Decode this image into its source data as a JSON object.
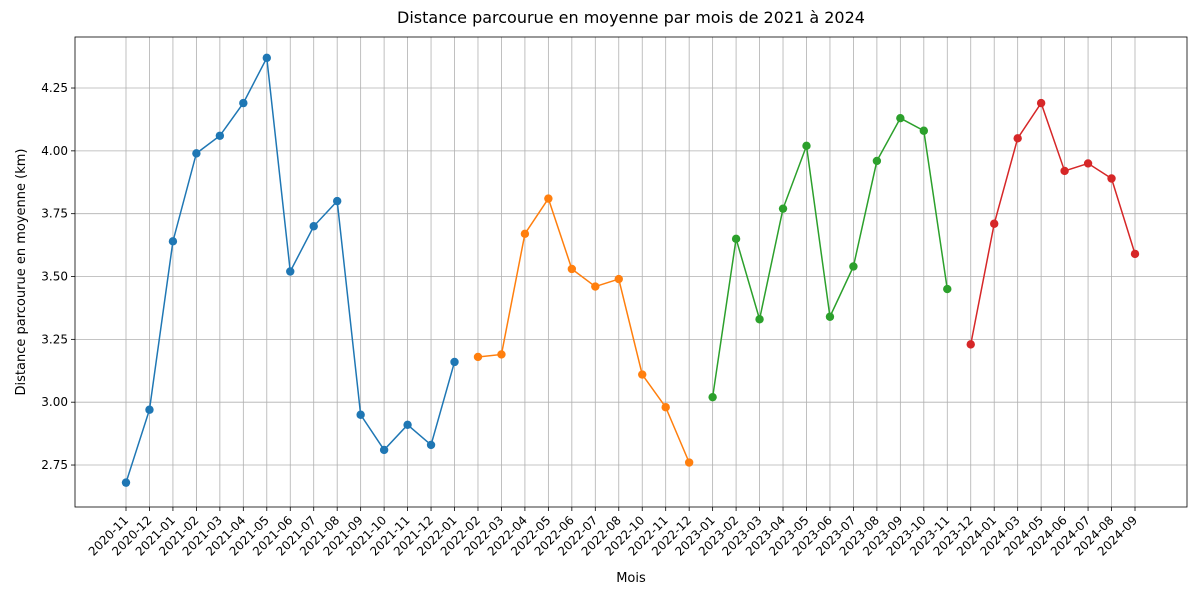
{
  "chart_data": {
    "type": "line",
    "title": "Distance parcourue en moyenne par mois de 2021 à 2024",
    "xlabel": "Mois",
    "ylabel": "Distance parcourue en moyenne (km)",
    "categories": [
      "2020-11",
      "2020-12",
      "2021-01",
      "2021-02",
      "2021-03",
      "2021-04",
      "2021-05",
      "2021-06",
      "2021-07",
      "2021-08",
      "2021-09",
      "2021-10",
      "2021-11",
      "2021-12",
      "2022-01",
      "2022-02",
      "2022-03",
      "2022-04",
      "2022-05",
      "2022-06",
      "2022-07",
      "2022-08",
      "2022-10",
      "2022-11",
      "2022-12",
      "2023-01",
      "2023-02",
      "2023-03",
      "2023-04",
      "2023-05",
      "2023-06",
      "2023-07",
      "2023-08",
      "2023-09",
      "2023-10",
      "2023-11",
      "2023-12",
      "2024-01",
      "2024-03",
      "2024-05",
      "2024-06",
      "2024-07",
      "2024-08",
      "2024-09"
    ],
    "series": [
      {
        "color": "#1f77b4",
        "values": [
          2.68,
          2.97,
          3.64,
          3.99,
          4.06,
          4.19,
          4.37,
          3.52,
          3.7,
          3.8,
          2.95,
          2.81,
          2.91,
          2.83,
          3.16,
          null,
          null,
          null,
          null,
          null,
          null,
          null,
          null,
          null,
          null,
          null,
          null,
          null,
          null,
          null,
          null,
          null,
          null,
          null,
          null,
          null,
          null,
          null,
          null,
          null,
          null,
          null,
          null,
          null
        ]
      },
      {
        "color": "#ff7f0e",
        "values": [
          null,
          null,
          null,
          null,
          null,
          null,
          null,
          null,
          null,
          null,
          null,
          null,
          null,
          null,
          null,
          3.18,
          3.19,
          3.67,
          3.81,
          3.53,
          3.46,
          3.49,
          3.11,
          2.98,
          2.76,
          null,
          null,
          null,
          null,
          null,
          null,
          null,
          null,
          null,
          null,
          null,
          null,
          null,
          null,
          null,
          null,
          null,
          null,
          null
        ]
      },
      {
        "color": "#2ca02c",
        "values": [
          null,
          null,
          null,
          null,
          null,
          null,
          null,
          null,
          null,
          null,
          null,
          null,
          null,
          null,
          null,
          null,
          null,
          null,
          null,
          null,
          null,
          null,
          null,
          null,
          null,
          3.02,
          3.65,
          3.33,
          3.77,
          4.02,
          3.34,
          3.54,
          3.96,
          4.13,
          4.08,
          3.45,
          null,
          null,
          null,
          null,
          null,
          null,
          null,
          null
        ]
      },
      {
        "color": "#d62728",
        "values": [
          null,
          null,
          null,
          null,
          null,
          null,
          null,
          null,
          null,
          null,
          null,
          null,
          null,
          null,
          null,
          null,
          null,
          null,
          null,
          null,
          null,
          null,
          null,
          null,
          null,
          null,
          null,
          null,
          null,
          null,
          null,
          null,
          null,
          null,
          null,
          null,
          3.23,
          3.71,
          4.05,
          4.19,
          3.92,
          3.95,
          3.89,
          3.59
        ]
      }
    ],
    "ylim": [
      2.583,
      4.453
    ],
    "yticks": [
      2.75,
      {
        "value": 3.0,
        "label": "3.00"
      },
      3.25,
      {
        "value": 3.5,
        "label": "3.50"
      },
      3.75,
      {
        "value": 4.0,
        "label": "4.00"
      },
      4.25
    ],
    "grid": true,
    "marker": "o"
  }
}
